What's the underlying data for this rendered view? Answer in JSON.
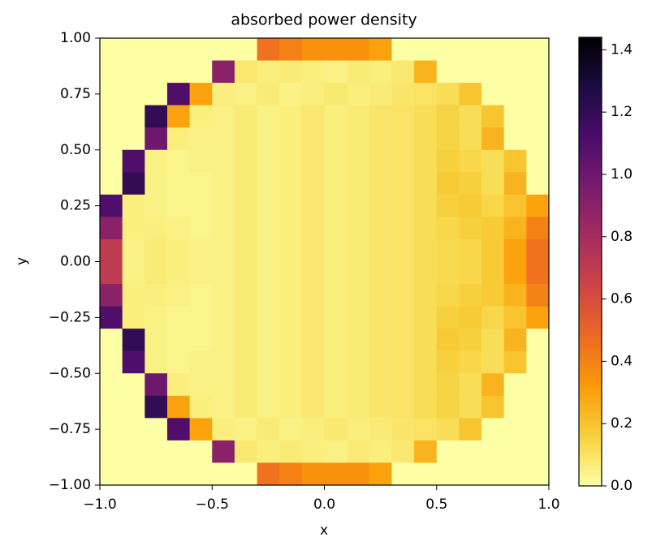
{
  "chart_data": {
    "type": "heatmap",
    "title": "absorbed power density",
    "xlabel": "x",
    "ylabel": "y",
    "xlim": [
      -1,
      1
    ],
    "ylim": [
      -1,
      1
    ],
    "xticks": [
      {
        "value": -1,
        "label": "−1.0"
      },
      {
        "value": -0.5,
        "label": "−0.5"
      },
      {
        "value": 0,
        "label": "0.0"
      },
      {
        "value": 0.5,
        "label": "0.5"
      },
      {
        "value": 1,
        "label": "1.0"
      }
    ],
    "yticks": [
      {
        "value": 1,
        "label": "1.00"
      },
      {
        "value": 0.75,
        "label": "0.75"
      },
      {
        "value": 0.5,
        "label": "0.50"
      },
      {
        "value": 0.25,
        "label": "0.25"
      },
      {
        "value": 0,
        "label": "0.00"
      },
      {
        "value": -0.25,
        "label": "−0.25"
      },
      {
        "value": -0.5,
        "label": "−0.50"
      },
      {
        "value": -0.75,
        "label": "−0.75"
      },
      {
        "value": -1,
        "label": "−1.00"
      }
    ],
    "zlim": [
      0,
      1.44
    ],
    "zticks": [
      {
        "value": 0,
        "label": "0.0"
      },
      {
        "value": 0.2,
        "label": "0.2"
      },
      {
        "value": 0.4,
        "label": "0.4"
      },
      {
        "value": 0.6,
        "label": "0.6"
      },
      {
        "value": 0.8,
        "label": "0.8"
      },
      {
        "value": 1,
        "label": "1.0"
      },
      {
        "value": 1.2,
        "label": "1.2"
      },
      {
        "value": 1.4,
        "label": "1.4"
      }
    ],
    "colormap": [
      "#fcffa4",
      "#f7d13d",
      "#fb9b06",
      "#ed6925",
      "#cf4446",
      "#a52c60",
      "#781c6d",
      "#4a0c6b",
      "#1b0c41",
      "#000004"
    ],
    "z": [
      [
        0,
        0,
        0,
        0,
        0,
        0,
        0,
        0.45,
        0.4,
        0.35,
        0.35,
        0.35,
        0.3,
        0,
        0,
        0,
        0,
        0,
        0,
        0
      ],
      [
        0,
        0,
        0,
        0,
        0,
        0.9,
        0.08,
        0.06,
        0.07,
        0.06,
        0.05,
        0.07,
        0.06,
        0.08,
        0.25,
        0,
        0,
        0,
        0,
        0
      ],
      [
        0,
        0,
        0,
        1.1,
        0.3,
        0.06,
        0.05,
        0.07,
        0.05,
        0.06,
        0.08,
        0.06,
        0.07,
        0.09,
        0.1,
        0.12,
        0.2,
        0,
        0,
        0
      ],
      [
        0,
        0,
        1.2,
        0.3,
        0.06,
        0.05,
        0.07,
        0.05,
        0.06,
        0.08,
        0.06,
        0.07,
        0.09,
        0.1,
        0.12,
        0.15,
        0.12,
        0.2,
        0,
        0
      ],
      [
        0,
        0,
        1.0,
        0.06,
        0.05,
        0.05,
        0.07,
        0.05,
        0.06,
        0.08,
        0.06,
        0.07,
        0.09,
        0.1,
        0.12,
        0.15,
        0.12,
        0.25,
        0,
        0
      ],
      [
        0,
        1.1,
        0.05,
        0.04,
        0.05,
        0.05,
        0.07,
        0.05,
        0.06,
        0.08,
        0.06,
        0.07,
        0.09,
        0.1,
        0.12,
        0.16,
        0.14,
        0.12,
        0.2,
        0
      ],
      [
        0,
        1.2,
        0.05,
        0.04,
        0.04,
        0.05,
        0.07,
        0.05,
        0.06,
        0.08,
        0.06,
        0.07,
        0.09,
        0.1,
        0.12,
        0.18,
        0.16,
        0.12,
        0.25,
        0
      ],
      [
        1.1,
        0.06,
        0.05,
        0.04,
        0.04,
        0.05,
        0.07,
        0.05,
        0.06,
        0.08,
        0.06,
        0.07,
        0.09,
        0.1,
        0.12,
        0.16,
        0.18,
        0.14,
        0.2,
        0.3
      ],
      [
        0.9,
        0.06,
        0.06,
        0.05,
        0.04,
        0.05,
        0.07,
        0.05,
        0.06,
        0.08,
        0.06,
        0.07,
        0.09,
        0.1,
        0.12,
        0.14,
        0.16,
        0.18,
        0.25,
        0.4
      ],
      [
        0.7,
        0.05,
        0.07,
        0.06,
        0.05,
        0.05,
        0.07,
        0.05,
        0.06,
        0.08,
        0.06,
        0.07,
        0.09,
        0.1,
        0.12,
        0.13,
        0.14,
        0.18,
        0.3,
        0.45
      ],
      [
        0.7,
        0.05,
        0.07,
        0.06,
        0.05,
        0.05,
        0.07,
        0.05,
        0.06,
        0.08,
        0.06,
        0.07,
        0.09,
        0.1,
        0.12,
        0.13,
        0.14,
        0.18,
        0.3,
        0.45
      ],
      [
        0.9,
        0.06,
        0.06,
        0.05,
        0.04,
        0.05,
        0.07,
        0.05,
        0.06,
        0.08,
        0.06,
        0.07,
        0.09,
        0.1,
        0.12,
        0.14,
        0.16,
        0.18,
        0.25,
        0.4
      ],
      [
        1.1,
        0.06,
        0.05,
        0.04,
        0.04,
        0.05,
        0.07,
        0.05,
        0.06,
        0.08,
        0.06,
        0.07,
        0.09,
        0.1,
        0.12,
        0.16,
        0.18,
        0.14,
        0.2,
        0.3
      ],
      [
        0,
        1.2,
        0.05,
        0.04,
        0.04,
        0.05,
        0.07,
        0.05,
        0.06,
        0.08,
        0.06,
        0.07,
        0.09,
        0.1,
        0.12,
        0.18,
        0.16,
        0.12,
        0.25,
        0
      ],
      [
        0,
        1.1,
        0.05,
        0.04,
        0.05,
        0.05,
        0.07,
        0.05,
        0.06,
        0.08,
        0.06,
        0.07,
        0.09,
        0.1,
        0.12,
        0.16,
        0.14,
        0.12,
        0.2,
        0
      ],
      [
        0,
        0,
        1.0,
        0.06,
        0.05,
        0.05,
        0.07,
        0.05,
        0.06,
        0.08,
        0.06,
        0.07,
        0.09,
        0.1,
        0.12,
        0.15,
        0.12,
        0.25,
        0,
        0
      ],
      [
        0,
        0,
        1.2,
        0.3,
        0.06,
        0.05,
        0.07,
        0.05,
        0.06,
        0.08,
        0.06,
        0.07,
        0.09,
        0.1,
        0.12,
        0.15,
        0.12,
        0.2,
        0,
        0
      ],
      [
        0,
        0,
        0,
        1.1,
        0.3,
        0.06,
        0.05,
        0.07,
        0.05,
        0.06,
        0.08,
        0.06,
        0.07,
        0.09,
        0.1,
        0.12,
        0.2,
        0,
        0,
        0
      ],
      [
        0,
        0,
        0,
        0,
        0,
        0.9,
        0.08,
        0.06,
        0.07,
        0.06,
        0.05,
        0.07,
        0.06,
        0.08,
        0.25,
        0,
        0,
        0,
        0,
        0
      ],
      [
        0,
        0,
        0,
        0,
        0,
        0,
        0,
        0.45,
        0.4,
        0.35,
        0.35,
        0.35,
        0.3,
        0,
        0,
        0,
        0,
        0,
        0,
        0
      ]
    ]
  }
}
